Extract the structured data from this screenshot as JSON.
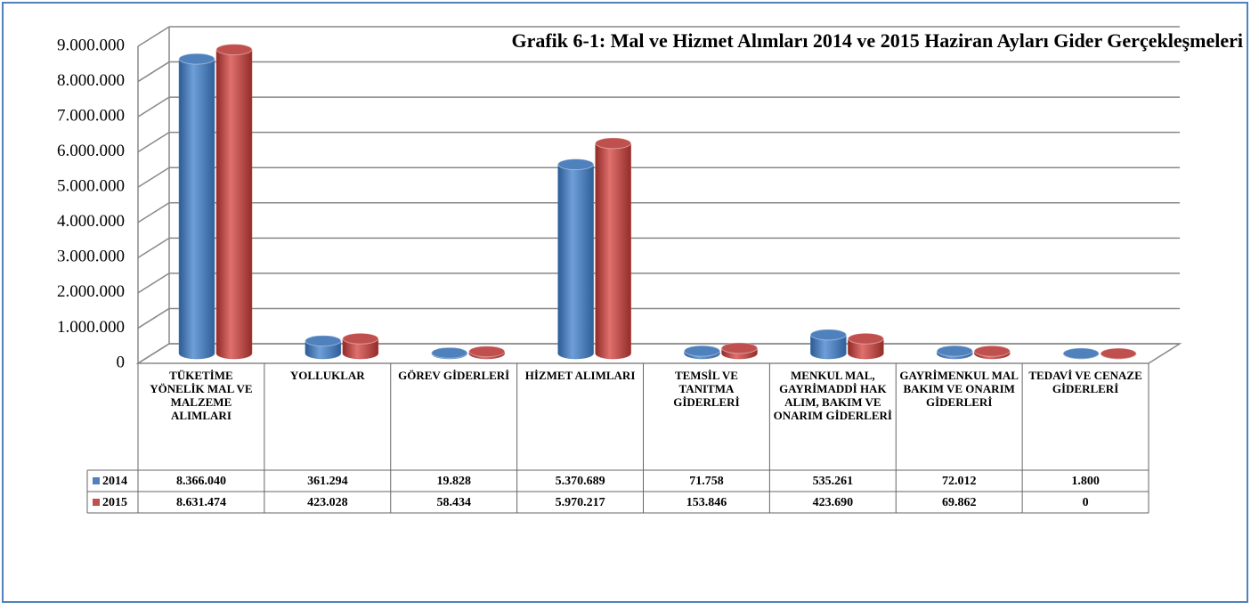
{
  "chart_data": {
    "type": "bar3d",
    "title": "Grafik 6-1: Mal ve Hizmet Alımları 2014 ve 2015 Haziran Ayları Gider Gerçekleşmeleri",
    "categories": [
      "TÜKETİME YÖNELİK MAL VE MALZEME ALIMLARI",
      "YOLLUKLAR",
      "GÖREV GİDERLERİ",
      "HİZMET ALIMLARI",
      "TEMSİL VE TANITMA GİDERLERİ",
      "MENKUL MAL, GAYRİMADDİ HAK ALIM, BAKIM VE ONARIM GİDERLERİ",
      "GAYRİMENKUL MAL BAKIM VE ONARIM GİDERLERİ",
      "TEDAVİ VE CENAZE GİDERLERİ"
    ],
    "series": [
      {
        "name": "2014",
        "color": "#4f81bd",
        "values": [
          8366040,
          361294,
          19828,
          5370689,
          71758,
          535261,
          72012,
          1800
        ],
        "value_labels": [
          "8.366.040",
          "361.294",
          "19.828",
          "5.370.689",
          "71.758",
          "535.261",
          "72.012",
          "1.800"
        ]
      },
      {
        "name": "2015",
        "color": "#c0504d",
        "values": [
          8631474,
          423028,
          58434,
          5970217,
          153846,
          423690,
          69862,
          0
        ],
        "value_labels": [
          "8.631.474",
          "423.028",
          "58.434",
          "5.970.217",
          "153.846",
          "423.690",
          "69.862",
          "0"
        ]
      }
    ],
    "ylim": [
      0,
      9000000
    ],
    "yticks": [
      0,
      {
        "value": 1000000,
        "label": "1.000.000"
      },
      {
        "value": 2000000,
        "label": "2.000.000"
      },
      {
        "value": 3000000,
        "label": "3.000.000"
      },
      {
        "value": 4000000,
        "label": "4.000.000"
      },
      {
        "value": 5000000,
        "label": "5.000.000"
      },
      {
        "value": 6000000,
        "label": "6.000.000"
      },
      {
        "value": 7000000,
        "label": "7.000.000"
      },
      {
        "value": 8000000,
        "label": "8.000.000"
      },
      {
        "value": 9000000,
        "label": "9.000.000"
      }
    ],
    "grid": true
  }
}
